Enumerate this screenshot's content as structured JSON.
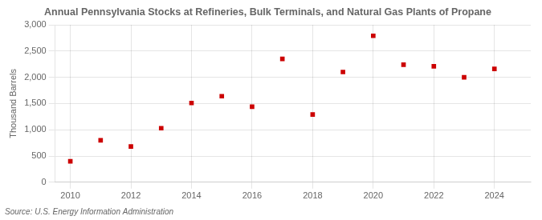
{
  "chart_data": {
    "type": "scatter",
    "title": "Annual Pennsylvania Stocks at Refineries, Bulk Terminals, and Natural Gas Plants of Propane",
    "ylabel": "Thousand Barrels",
    "annotations": [
      "Source: U.S. Energy Information Administration"
    ],
    "x": [
      2010,
      2011,
      2012,
      2013,
      2014,
      2015,
      2016,
      2017,
      2018,
      2019,
      2020,
      2021,
      2022,
      2023,
      2024
    ],
    "values": [
      400,
      800,
      680,
      1030,
      1510,
      1640,
      1440,
      2350,
      1290,
      2100,
      2790,
      2240,
      2210,
      2000,
      2160
    ],
    "color": "#cc0000",
    "marker": "square",
    "xlim": [
      2009.5,
      2025.2
    ],
    "xticks": [
      2010,
      2012,
      2014,
      2016,
      2018,
      2020,
      2022,
      2024
    ],
    "ylim": [
      0,
      3000
    ],
    "yticks": [
      0,
      500,
      {
        "value": 1000,
        "label": "1,000"
      },
      {
        "value": 1500,
        "label": "1,500"
      },
      {
        "value": 2000,
        "label": "2,000"
      },
      {
        "value": 2500,
        "label": "2,500"
      },
      {
        "value": 3000,
        "label": "3,000"
      }
    ],
    "grid": true
  }
}
